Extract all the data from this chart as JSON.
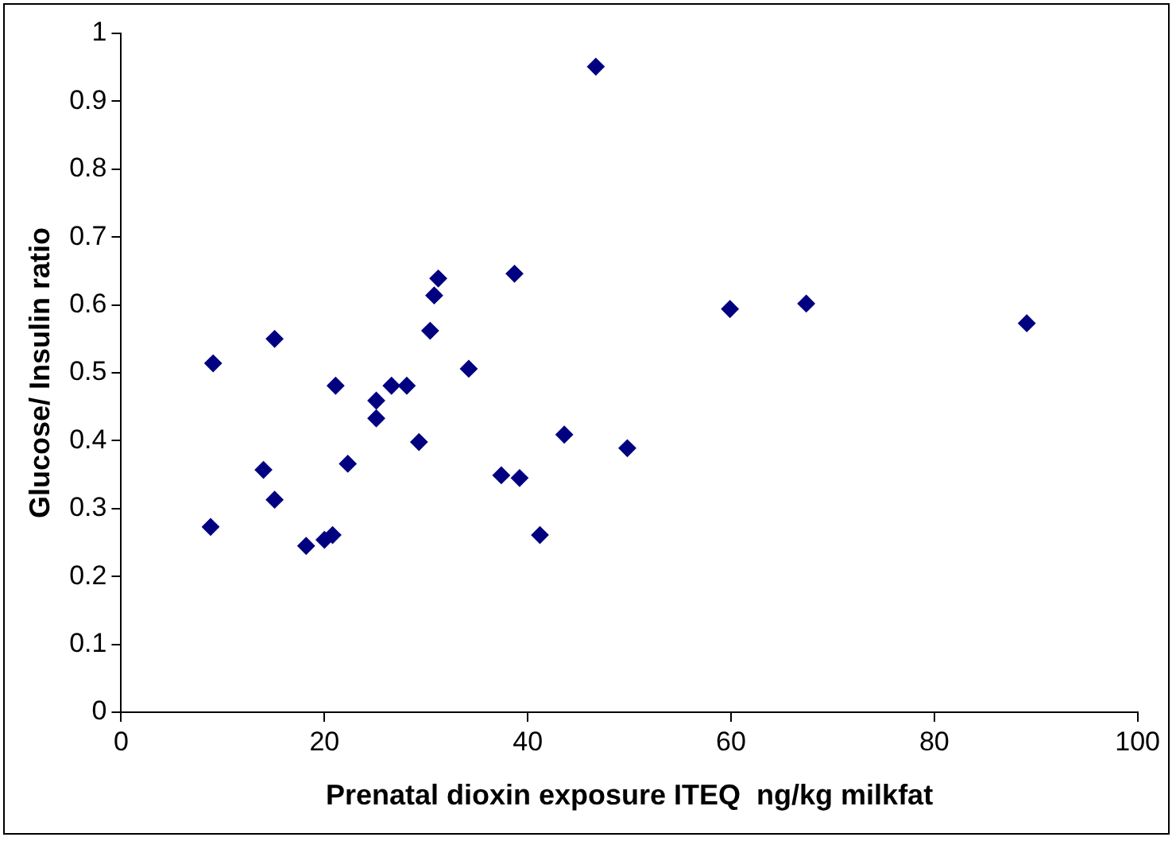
{
  "chart_data": {
    "type": "scatter",
    "xlabel": "Prenatal dioxin exposure ITEQ  ng/kg milkfat",
    "ylabel": "Glucose/ Insulin ratio",
    "x": [
      9.05,
      8.8,
      14.0,
      15.1,
      15.1,
      18.2,
      20.0,
      20.8,
      21.1,
      22.3,
      25.1,
      25.1,
      26.6,
      28.1,
      29.3,
      30.4,
      30.8,
      31.2,
      34.2,
      37.4,
      38.7,
      39.2,
      41.2,
      43.6,
      46.7,
      49.8,
      59.9,
      67.4,
      89.1
    ],
    "values": [
      0.514,
      0.273,
      0.357,
      0.55,
      0.313,
      0.245,
      0.254,
      0.261,
      0.481,
      0.366,
      0.459,
      0.433,
      0.481,
      0.481,
      0.398,
      0.562,
      0.614,
      0.639,
      0.506,
      0.349,
      0.646,
      0.345,
      0.261,
      0.409,
      0.951,
      0.389,
      0.594,
      0.602,
      0.573
    ],
    "color": "#000080",
    "marker": "diamond",
    "grid": false,
    "legend": false,
    "xlim": [
      0,
      100
    ],
    "xticks": [
      0,
      20,
      40,
      60,
      80,
      100
    ],
    "ylim": [
      0,
      1
    ],
    "yticks": [
      0,
      0.1,
      0.2,
      0.3,
      0.4,
      0.5,
      0.6,
      0.7,
      0.8,
      0.9,
      1
    ]
  }
}
